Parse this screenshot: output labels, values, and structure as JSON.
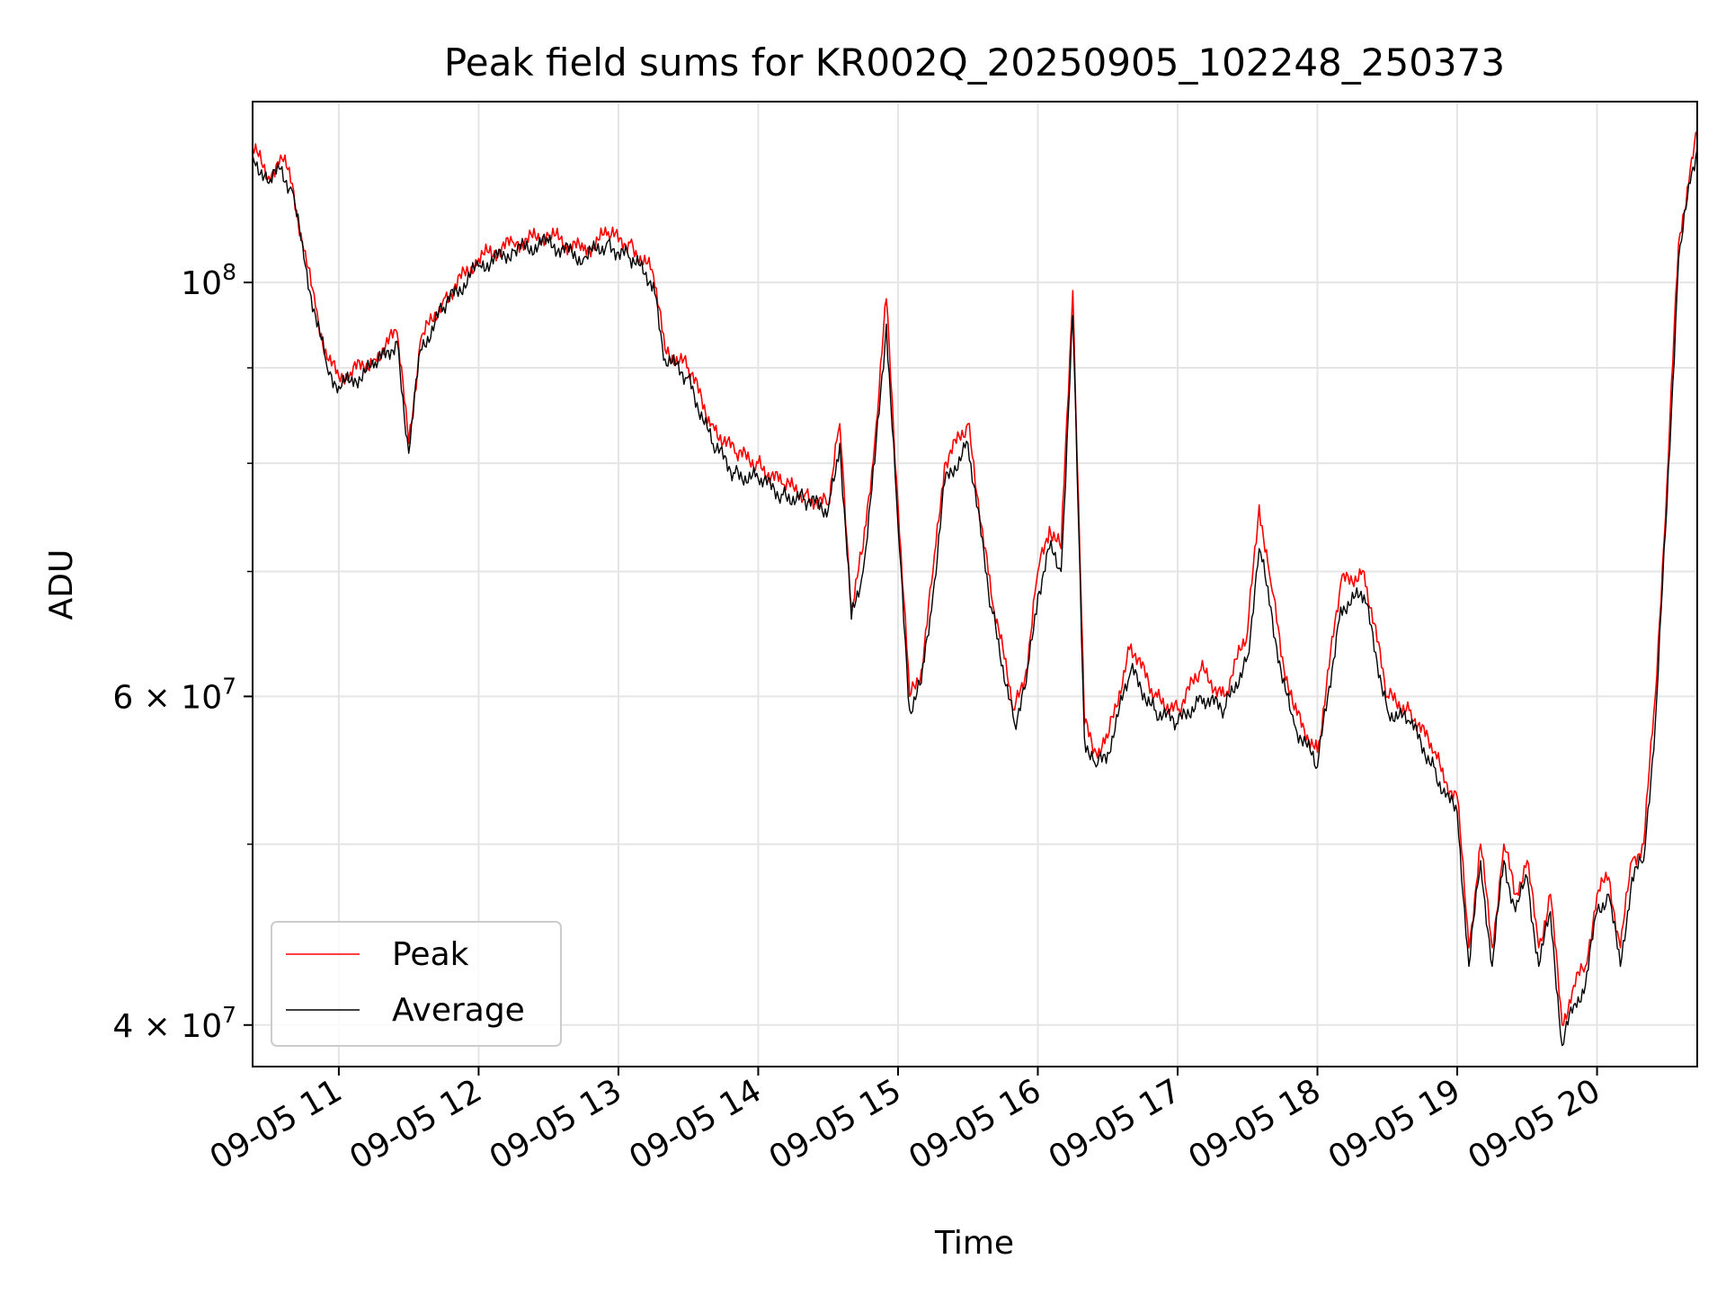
{
  "chart_data": {
    "type": "line",
    "title": "Peak field sums for KR002Q_20250905_102248_250373",
    "xlabel": "Time",
    "ylabel": "ADU",
    "y_scale": "log",
    "xlim": [
      "09-05 10:23",
      "09-05 20:43"
    ],
    "ylim": [
      38000000,
      125000000
    ],
    "grid": true,
    "legend_position": "lower-left",
    "x_ticks": [
      "09-05 11",
      "09-05 12",
      "09-05 13",
      "09-05 14",
      "09-05 15",
      "09-05 16",
      "09-05 17",
      "09-05 18",
      "09-05 19",
      "09-05 20"
    ],
    "y_ticks_major": [
      "10^8",
      "6 × 10^7",
      "4 × 10^7"
    ],
    "colors": {
      "peak": "#ff0000",
      "average": "#000000"
    },
    "x": [
      "09-05 10:23",
      "09-05 10:30",
      "09-05 10:35",
      "09-05 10:40",
      "09-05 10:45",
      "09-05 10:50",
      "09-05 10:55",
      "09-05 11:00",
      "09-05 11:05",
      "09-05 11:15",
      "09-05 11:25",
      "09-05 11:30",
      "09-05 11:35",
      "09-05 11:45",
      "09-05 12:00",
      "09-05 12:15",
      "09-05 12:30",
      "09-05 12:45",
      "09-05 12:55",
      "09-05 13:05",
      "09-05 13:15",
      "09-05 13:20",
      "09-05 13:30",
      "09-05 13:40",
      "09-05 13:50",
      "09-05 14:00",
      "09-05 14:10",
      "09-05 14:20",
      "09-05 14:30",
      "09-05 14:35",
      "09-05 14:40",
      "09-05 14:45",
      "09-05 14:50",
      "09-05 14:55",
      "09-05 15:00",
      "09-05 15:05",
      "09-05 15:10",
      "09-05 15:15",
      "09-05 15:20",
      "09-05 15:30",
      "09-05 15:40",
      "09-05 15:50",
      "09-05 15:55",
      "09-05 16:00",
      "09-05 16:05",
      "09-05 16:10",
      "09-05 16:15",
      "09-05 16:20",
      "09-05 16:25",
      "09-05 16:30",
      "09-05 16:40",
      "09-05 16:50",
      "09-05 17:00",
      "09-05 17:10",
      "09-05 17:20",
      "09-05 17:30",
      "09-05 17:35",
      "09-05 17:40",
      "09-05 17:45",
      "09-05 17:50",
      "09-05 18:00",
      "09-05 18:10",
      "09-05 18:20",
      "09-05 18:30",
      "09-05 18:40",
      "09-05 18:50",
      "09-05 18:55",
      "09-05 19:00",
      "09-05 19:05",
      "09-05 19:10",
      "09-05 19:15",
      "09-05 19:20",
      "09-05 19:25",
      "09-05 19:30",
      "09-05 19:35",
      "09-05 19:40",
      "09-05 19:45",
      "09-05 19:50",
      "09-05 19:55",
      "09-05 20:00",
      "09-05 20:05",
      "09-05 20:10",
      "09-05 20:15",
      "09-05 20:20",
      "09-05 20:25",
      "09-05 20:30",
      "09-05 20:35",
      "09-05 20:40",
      "09-05 20:43"
    ],
    "series": [
      {
        "name": "Peak",
        "values": [
          118000000,
          114000000,
          117000000,
          113000000,
          104000000,
          97000000,
          91000000,
          89000000,
          89500000,
          91000000,
          94000000,
          82000000,
          93000000,
          98000000,
          103000000,
          105000000,
          106000000,
          104000000,
          106000000,
          105000000,
          101000000,
          92000000,
          90000000,
          84000000,
          81000000,
          80000000,
          78000000,
          77000000,
          76000000,
          84000000,
          67000000,
          72000000,
          82000000,
          98000000,
          76000000,
          60000000,
          62000000,
          70000000,
          80000000,
          84000000,
          68000000,
          59000000,
          62000000,
          70000000,
          74000000,
          72000000,
          99000000,
          58000000,
          56000000,
          57000000,
          64000000,
          60000000,
          59000000,
          62000000,
          60000000,
          65000000,
          76000000,
          69000000,
          63000000,
          59000000,
          56000000,
          69000000,
          70000000,
          60000000,
          59000000,
          56000000,
          54000000,
          53000000,
          44000000,
          50000000,
          44000000,
          50000000,
          47000000,
          49000000,
          44000000,
          47000000,
          40000000,
          42000000,
          43000000,
          47000000,
          48000000,
          44000000,
          49000000,
          50000000,
          60000000,
          78000000,
          105000000,
          115000000,
          120000000
        ]
      },
      {
        "name": "Average",
        "values": [
          117000000,
          113000000,
          115000000,
          112000000,
          103000000,
          96000000,
          90000000,
          88000000,
          88500000,
          90000000,
          93000000,
          81000000,
          92000000,
          97000000,
          102000000,
          104000000,
          105000000,
          103000000,
          105000000,
          103000000,
          100000000,
          91000000,
          89000000,
          82000000,
          79000000,
          78500000,
          77000000,
          76500000,
          75500000,
          82000000,
          66000000,
          70000000,
          80000000,
          95000000,
          74000000,
          59000000,
          61000000,
          68000000,
          78000000,
          82000000,
          67000000,
          58000000,
          61000000,
          68000000,
          72000000,
          70000000,
          96000000,
          57000000,
          55000000,
          56000000,
          62000000,
          59000000,
          58000000,
          60000000,
          59000000,
          63000000,
          72000000,
          67000000,
          61000000,
          58000000,
          55000000,
          67000000,
          68000000,
          59000000,
          58000000,
          55000000,
          53000000,
          52000000,
          43000000,
          49000000,
          43000000,
          49000000,
          46000000,
          48000000,
          43000000,
          46000000,
          39000000,
          41000000,
          42000000,
          46000000,
          47000000,
          43000000,
          48000000,
          49000000,
          58000000,
          76000000,
          103000000,
          113000000,
          118000000
        ]
      }
    ]
  }
}
